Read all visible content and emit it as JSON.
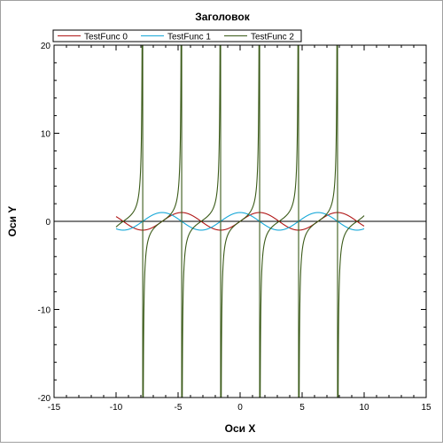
{
  "chart_data": {
    "type": "line",
    "title": "Заголовок",
    "xlabel": "Оси X",
    "ylabel": "Оси Y",
    "xlim": [
      -15,
      15
    ],
    "ylim": [
      -20,
      20
    ],
    "xticks": [
      -15,
      -10,
      -5,
      0,
      5,
      10,
      15
    ],
    "yticks": [
      -20,
      -10,
      0,
      10,
      20
    ],
    "x_range": [
      -10,
      10
    ],
    "grid": false,
    "legend_position": "top",
    "series": [
      {
        "name": "TestFunc 0",
        "function": "sin(x)",
        "color": "#b01818"
      },
      {
        "name": "TestFunc 1",
        "function": "cos(x)",
        "color": "#18a8d8"
      },
      {
        "name": "TestFunc 2",
        "function": "tan(x)",
        "color": "#3a5a18"
      }
    ]
  }
}
